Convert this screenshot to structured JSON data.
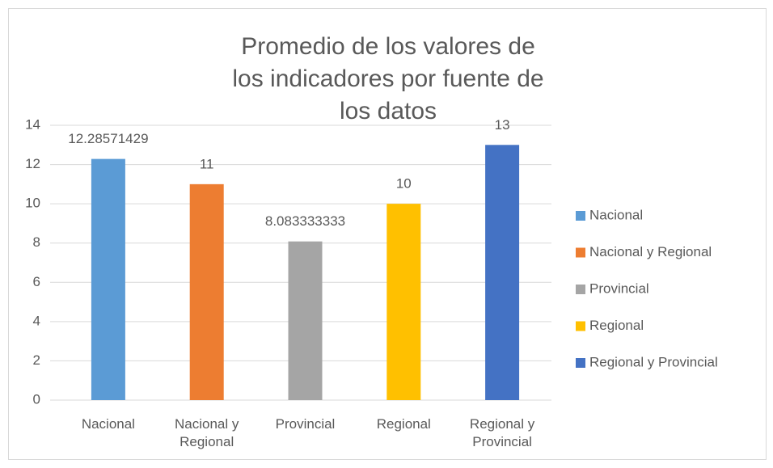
{
  "chart_data": {
    "type": "bar",
    "title": "Promedio de los valores de los indicadores por fuente de los datos",
    "categories": [
      "Nacional",
      "Nacional y Regional",
      "Provincial",
      "Regional",
      "Regional y Provincial"
    ],
    "values": [
      12.28571429,
      11,
      8.083333333,
      10,
      13
    ],
    "colors": [
      "#5b9bd5",
      "#ed7d31",
      "#a5a5a5",
      "#ffc000",
      "#4472c4"
    ],
    "ylim": [
      0,
      14
    ],
    "yticks": [
      0,
      2,
      4,
      6,
      8,
      10,
      12,
      14
    ],
    "grid": true,
    "legend": "right"
  }
}
